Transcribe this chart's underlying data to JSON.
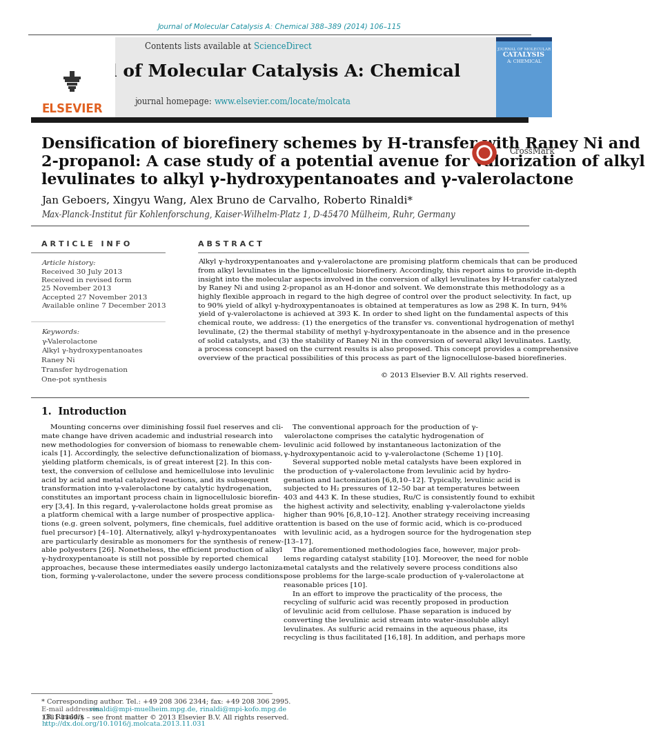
{
  "page_bg": "#ffffff",
  "top_citation": "Journal of Molecular Catalysis A: Chemical 388–389 (2014) 106–115",
  "top_citation_color": "#1a8fa0",
  "journal_header_bg": "#e8e8e8",
  "journal_title": "Journal of Molecular Catalysis A: Chemical",
  "contents_text": "Contents lists available at ",
  "science_direct": "ScienceDirect",
  "science_direct_color": "#1a8fa0",
  "journal_homepage": "journal homepage: ",
  "journal_url": "www.elsevier.com/locate/molcata",
  "journal_url_color": "#1a8fa0",
  "separator_color": "#2a2a2a",
  "article_title_line1": "Densification of biorefinery schemes by H-transfer with Raney Ni and",
  "article_title_line2": "2-propanol: A case study of a potential avenue for valorization of alkyl",
  "article_title_line3": "levulinates to alkyl γ-hydroxypentanoates and γ-valerolactone",
  "authors": "Jan Geboers, Xingyu Wang, Alex Bruno de Carvalho, Roberto Rinaldi",
  "author_star": "*",
  "affiliation": "Max-Planck-Institut für Kohlenforschung, Kaiser-Wilhelm-Platz 1, D-45470 Mülheim, Ruhr, Germany",
  "article_info_header": "A R T I C L E   I N F O",
  "abstract_header": "A B S T R A C T",
  "article_history_label": "Article history:",
  "received_text": "Received 30 July 2013",
  "revised_text": "Received in revised form",
  "revised_date": "25 November 2013",
  "accepted_text": "Accepted 27 November 2013",
  "available_text": "Available online 7 December 2013",
  "keywords_label": "Keywords:",
  "keyword1": "γ-Valerolactone",
  "keyword2": "Alkyl γ-hydroxypentanoates",
  "keyword3": "Raney Ni",
  "keyword4": "Transfer hydrogenation",
  "keyword5": "One-pot synthesis",
  "abstract_text": "Alkyl γ-hydroxypentanoates and γ-valerolactone are promising platform chemicals that can be produced from alkyl levulinates in the lignocellulosic biorefinery.",
  "copyright_text": "© 2013 Elsevier B.V. All rights reserved.",
  "intro_header": "1.  Introduction",
  "footnote_text": "* Corresponding author. Tel.: +49 208 306 2344; fax: +49 208 306 2995.",
  "email_label": "E-mail addresses: ",
  "email1": "rinaldi@mpi-muelheim.mpg.de",
  "email2": "rinaldi@mpi-kofo.mpg.de",
  "email_suffix": " (R. Rinaldi).",
  "issn_text": "1381-1169/$ – see front matter © 2013 Elsevier B.V. All rights reserved.",
  "doi_text": "http://dx.doi.org/10.1016/j.molcata.2013.11.031",
  "doi_color": "#1a8fa0",
  "text_color": "#000000",
  "italic_color": "#333333"
}
